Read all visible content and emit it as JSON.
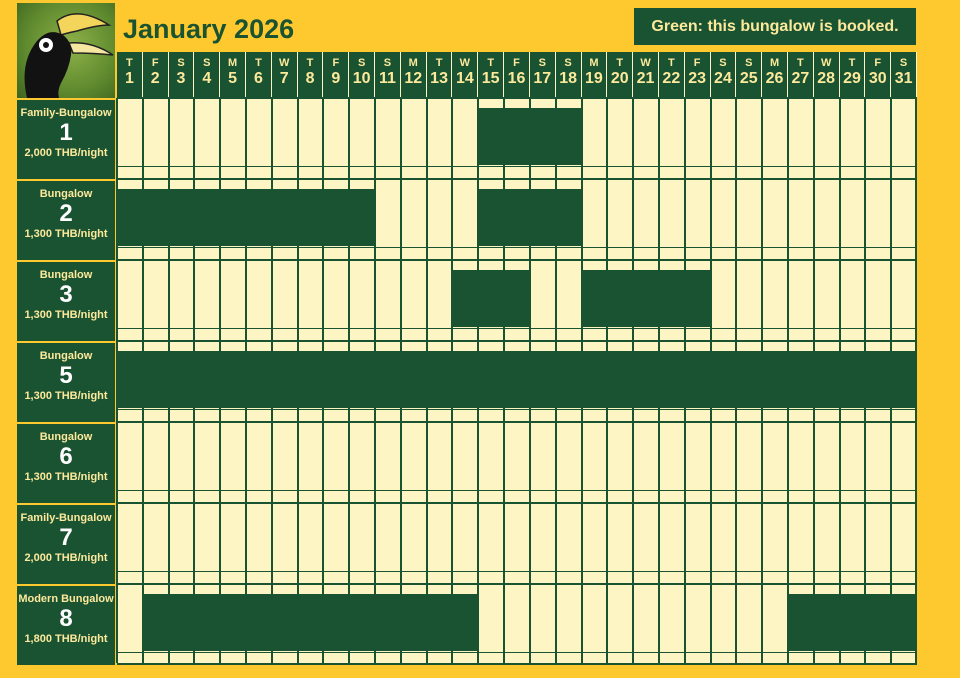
{
  "header": {
    "month_title": "January 2026",
    "legend_text": "Green: this bungalow is booked.",
    "logo_icon": "hornbill-logo-icon"
  },
  "colors": {
    "background": "#fdc92f",
    "booked": "#1a5332",
    "free": "#fdf6c4",
    "header_text": "#fde99b"
  },
  "days": [
    {
      "dow": "T",
      "num": "1"
    },
    {
      "dow": "F",
      "num": "2"
    },
    {
      "dow": "S",
      "num": "3"
    },
    {
      "dow": "S",
      "num": "4"
    },
    {
      "dow": "M",
      "num": "5"
    },
    {
      "dow": "T",
      "num": "6"
    },
    {
      "dow": "W",
      "num": "7"
    },
    {
      "dow": "T",
      "num": "8"
    },
    {
      "dow": "F",
      "num": "9"
    },
    {
      "dow": "S",
      "num": "10"
    },
    {
      "dow": "S",
      "num": "11"
    },
    {
      "dow": "M",
      "num": "12"
    },
    {
      "dow": "T",
      "num": "13"
    },
    {
      "dow": "W",
      "num": "14"
    },
    {
      "dow": "T",
      "num": "15"
    },
    {
      "dow": "F",
      "num": "16"
    },
    {
      "dow": "S",
      "num": "17"
    },
    {
      "dow": "S",
      "num": "18"
    },
    {
      "dow": "M",
      "num": "19"
    },
    {
      "dow": "T",
      "num": "20"
    },
    {
      "dow": "W",
      "num": "21"
    },
    {
      "dow": "T",
      "num": "22"
    },
    {
      "dow": "F",
      "num": "23"
    },
    {
      "dow": "S",
      "num": "24"
    },
    {
      "dow": "S",
      "num": "25"
    },
    {
      "dow": "M",
      "num": "26"
    },
    {
      "dow": "T",
      "num": "27"
    },
    {
      "dow": "W",
      "num": "28"
    },
    {
      "dow": "T",
      "num": "29"
    },
    {
      "dow": "F",
      "num": "30"
    },
    {
      "dow": "S",
      "num": "31"
    }
  ],
  "bungalows": [
    {
      "type": "Family-Bungalow",
      "number": "1",
      "price": "2,000 THB/night",
      "bookings": [
        [
          15,
          18
        ]
      ]
    },
    {
      "type": "Bungalow",
      "number": "2",
      "price": "1,300 THB/night",
      "bookings": [
        [
          1,
          10
        ],
        [
          15,
          18
        ]
      ]
    },
    {
      "type": "Bungalow",
      "number": "3",
      "price": "1,300 THB/night",
      "bookings": [
        [
          14,
          16
        ],
        [
          19,
          23
        ]
      ]
    },
    {
      "type": "Bungalow",
      "number": "5",
      "price": "1,300 THB/night",
      "bookings": [
        [
          1,
          31
        ]
      ]
    },
    {
      "type": "Bungalow",
      "number": "6",
      "price": "1,300 THB/night",
      "bookings": []
    },
    {
      "type": "Family-Bungalow",
      "number": "7",
      "price": "2,000 THB/night",
      "bookings": []
    },
    {
      "type": "Modern Bungalow",
      "number": "8",
      "price": "1,800 THB/night",
      "bookings": [
        [
          2,
          6
        ],
        [
          7,
          14
        ],
        [
          27,
          31
        ]
      ]
    }
  ]
}
